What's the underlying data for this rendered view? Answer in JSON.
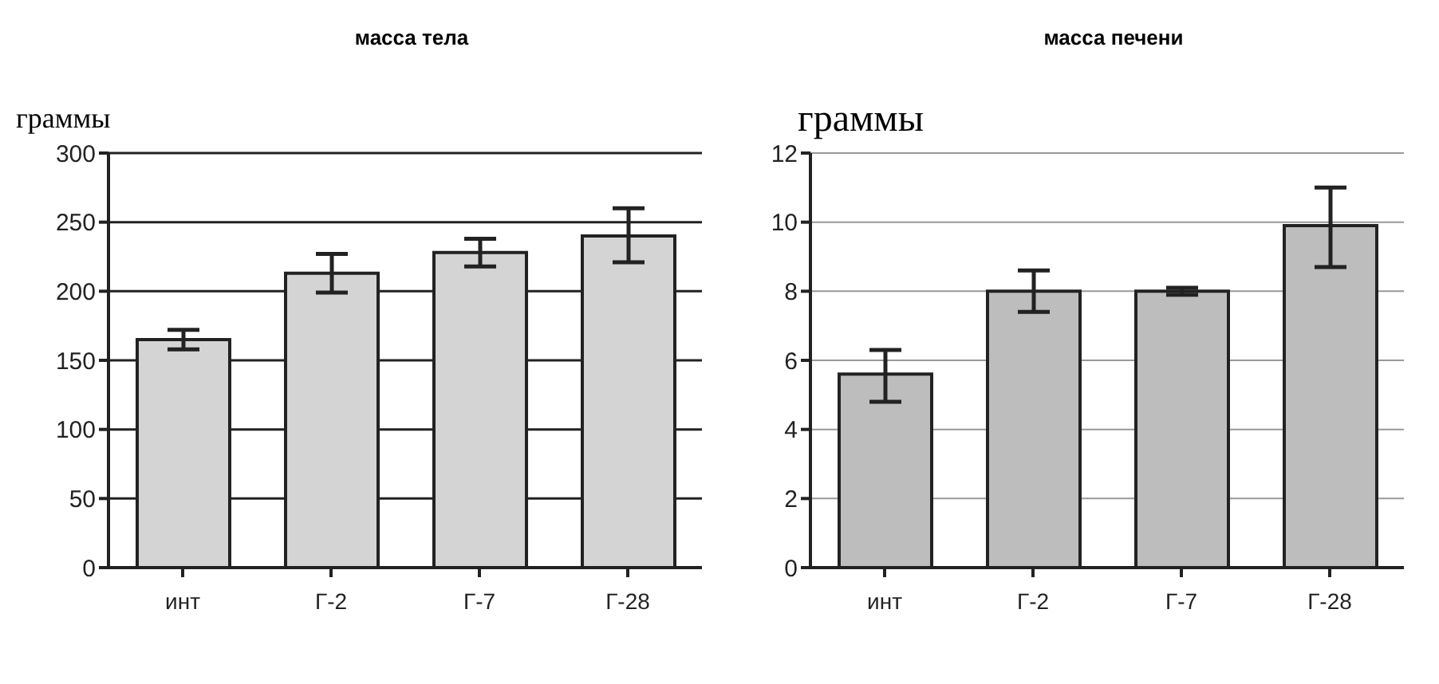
{
  "chart_data": [
    {
      "type": "bar",
      "title": "масса тела",
      "ylabel": "граммы",
      "categories": [
        "инт",
        "Г-2",
        "Г-7",
        "Г-28"
      ],
      "values": [
        165,
        213,
        228,
        240
      ],
      "errors": [
        [
          158,
          172
        ],
        [
          199,
          227
        ],
        [
          218,
          238
        ],
        [
          221,
          260
        ]
      ],
      "color": "#d4d4d4",
      "ylim": [
        0,
        300
      ],
      "yticks": [
        0,
        50,
        100,
        150,
        200,
        250,
        300
      ],
      "grid": "y",
      "legend": false
    },
    {
      "type": "bar",
      "title": "масса печени",
      "ylabel": "граммы",
      "categories": [
        "инт",
        "Г-2",
        "Г-7",
        "Г-28"
      ],
      "values": [
        5.6,
        8.0,
        8.0,
        9.9
      ],
      "errors": [
        [
          4.8,
          6.3
        ],
        [
          7.4,
          8.6
        ],
        [
          7.9,
          8.1
        ],
        [
          8.7,
          11.0
        ]
      ],
      "color": "#bdbdbd",
      "ylim": [
        0,
        12
      ],
      "yticks": [
        0,
        2,
        4,
        6,
        8,
        10,
        12
      ],
      "grid": "y",
      "legend": false
    }
  ]
}
